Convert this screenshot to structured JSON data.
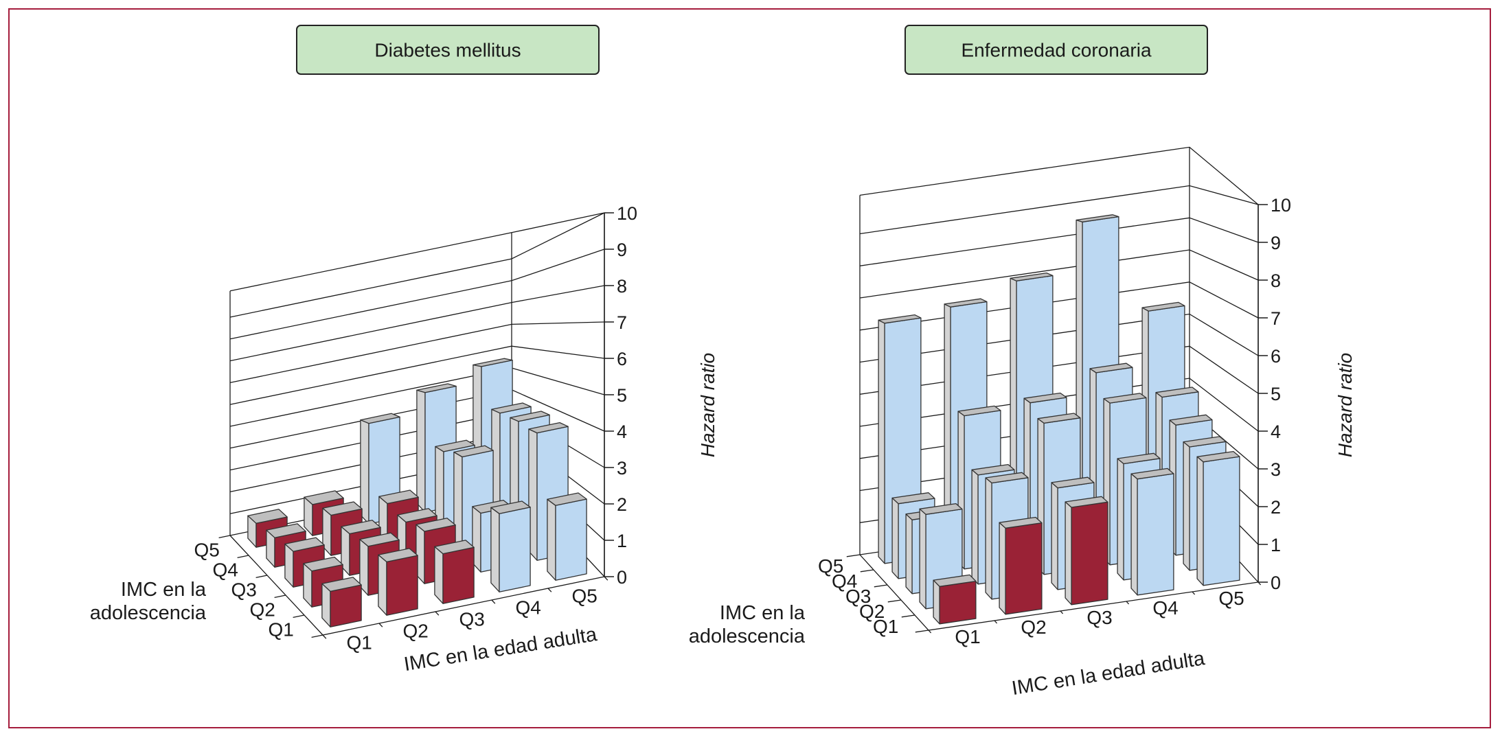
{
  "figure": {
    "colors": {
      "frame": "#a51c3c",
      "title_bg": "#c8e6c4",
      "bar_blue_front": "#bcd8f2",
      "bar_side": "#d3d3d3",
      "bar_red_front": "#9a2236",
      "grid": "#1a1a1a"
    }
  },
  "chart_data": [
    {
      "type": "bar3d",
      "title": "Diabetes mellitus",
      "xlabel": "IMC en la edad adulta",
      "ylabel": "IMC en la\nadolescencia",
      "zlabel": "Hazard ratio",
      "x_categories": [
        "Q1",
        "Q2",
        "Q3",
        "Q4",
        "Q5"
      ],
      "y_categories": [
        "Q1",
        "Q2",
        "Q3",
        "Q4",
        "Q5"
      ],
      "z_ticks": [
        "0",
        "1",
        "2",
        "3",
        "4",
        "5",
        "6",
        "7",
        "8",
        "9",
        "10"
      ],
      "zlim": [
        0,
        10
      ],
      "bars": [
        {
          "adult": "Q1",
          "adol": "Q5",
          "value": 1.0,
          "color": "red"
        },
        {
          "adult": "Q1",
          "adol": "Q4",
          "value": 1.1,
          "color": "red"
        },
        {
          "adult": "Q1",
          "adol": "Q3",
          "value": 1.2,
          "color": "red"
        },
        {
          "adult": "Q1",
          "adol": "Q2",
          "value": 1.1,
          "color": "red"
        },
        {
          "adult": "Q1",
          "adol": "Q1",
          "value": 1.0,
          "color": "red"
        },
        {
          "adult": "Q2",
          "adol": "Q5",
          "value": 1.3,
          "color": "red"
        },
        {
          "adult": "Q2",
          "adol": "Q4",
          "value": 1.5,
          "color": "red"
        },
        {
          "adult": "Q2",
          "adol": "Q3",
          "value": 1.4,
          "color": "red"
        },
        {
          "adult": "Q2",
          "adol": "Q2",
          "value": 1.5,
          "color": "red"
        },
        {
          "adult": "Q2",
          "adol": "Q1",
          "value": 1.5,
          "color": "red"
        },
        {
          "adult": "Q3",
          "adol": "Q5",
          "value": 4.2,
          "color": "blue"
        },
        {
          "adult": "Q3",
          "adol": "Q4",
          "value": 1.5,
          "color": "red"
        },
        {
          "adult": "Q3",
          "adol": "Q3",
          "value": 1.4,
          "color": "red"
        },
        {
          "adult": "Q3",
          "adol": "Q2",
          "value": 1.6,
          "color": "red"
        },
        {
          "adult": "Q3",
          "adol": "Q1",
          "value": 1.4,
          "color": "red"
        },
        {
          "adult": "Q4",
          "adol": "Q5",
          "value": 5.0,
          "color": "blue"
        },
        {
          "adult": "Q4",
          "adol": "Q4",
          "value": 3.0,
          "color": "blue"
        },
        {
          "adult": "Q4",
          "adol": "Q3",
          "value": 3.2,
          "color": "blue"
        },
        {
          "adult": "Q4",
          "adol": "Q2",
          "value": 1.8,
          "color": "blue"
        },
        {
          "adult": "Q4",
          "adol": "Q1",
          "value": 2.2,
          "color": "blue"
        },
        {
          "adult": "Q5",
          "adol": "Q5",
          "value": 5.6,
          "color": "blue"
        },
        {
          "adult": "Q5",
          "adol": "Q4",
          "value": 4.0,
          "color": "blue"
        },
        {
          "adult": "Q5",
          "adol": "Q3",
          "value": 4.0,
          "color": "blue"
        },
        {
          "adult": "Q5",
          "adol": "Q2",
          "value": 3.9,
          "color": "blue"
        },
        {
          "adult": "Q5",
          "adol": "Q1",
          "value": 2.1,
          "color": "blue"
        }
      ]
    },
    {
      "type": "bar3d",
      "title": "Enfermedad coronaria",
      "xlabel": "IMC en la edad adulta",
      "ylabel": "IMC en la\nadolescencia",
      "zlabel": "Hazard ratio",
      "x_categories": [
        "Q1",
        "Q2",
        "Q3",
        "Q4",
        "Q5"
      ],
      "y_categories": [
        "Q1",
        "Q2",
        "Q3",
        "Q4",
        "Q5"
      ],
      "z_ticks": [
        "0",
        "1",
        "2",
        "3",
        "4",
        "5",
        "6",
        "7",
        "8",
        "9",
        "10"
      ],
      "zlim": [
        0,
        10
      ],
      "bars": [
        {
          "adult": "Q1",
          "adol": "Q1",
          "value": 1.0,
          "color": "red"
        },
        {
          "adult": "Q1",
          "adol": "Q2",
          "value": 2.6,
          "color": "blue"
        },
        {
          "adult": "Q1",
          "adol": "Q3",
          "value": 2.1,
          "color": "blue"
        },
        {
          "adult": "Q1",
          "adol": "Q4",
          "value": 2.2,
          "color": "blue"
        },
        {
          "adult": "Q1",
          "adol": "Q5",
          "value": 7.3,
          "color": "blue"
        },
        {
          "adult": "Q2",
          "adol": "Q1",
          "value": 2.3,
          "color": "red"
        },
        {
          "adult": "Q2",
          "adol": "Q2",
          "value": 3.2,
          "color": "blue"
        },
        {
          "adult": "Q2",
          "adol": "Q3",
          "value": 3.1,
          "color": "blue"
        },
        {
          "adult": "Q2",
          "adol": "Q4",
          "value": 4.5,
          "color": "blue"
        },
        {
          "adult": "Q2",
          "adol": "Q5",
          "value": 7.5,
          "color": "blue"
        },
        {
          "adult": "Q3",
          "adol": "Q1",
          "value": 2.6,
          "color": "red"
        },
        {
          "adult": "Q3",
          "adol": "Q2",
          "value": 2.8,
          "color": "blue"
        },
        {
          "adult": "Q3",
          "adol": "Q3",
          "value": 4.3,
          "color": "blue"
        },
        {
          "adult": "Q3",
          "adol": "Q4",
          "value": 4.6,
          "color": "blue"
        },
        {
          "adult": "Q3",
          "adol": "Q5",
          "value": 8.0,
          "color": "blue"
        },
        {
          "adult": "Q4",
          "adol": "Q1",
          "value": 3.1,
          "color": "blue"
        },
        {
          "adult": "Q4",
          "adol": "Q2",
          "value": 3.2,
          "color": "blue"
        },
        {
          "adult": "Q4",
          "adol": "Q3",
          "value": 4.6,
          "color": "blue"
        },
        {
          "adult": "Q4",
          "adol": "Q4",
          "value": 5.2,
          "color": "blue"
        },
        {
          "adult": "Q4",
          "adol": "Q5",
          "value": 9.5,
          "color": "blue"
        },
        {
          "adult": "Q5",
          "adol": "Q1",
          "value": 3.3,
          "color": "blue"
        },
        {
          "adult": "Q5",
          "adol": "Q2",
          "value": 3.4,
          "color": "blue"
        },
        {
          "adult": "Q5",
          "adol": "Q3",
          "value": 3.7,
          "color": "blue"
        },
        {
          "adult": "Q5",
          "adol": "Q4",
          "value": 4.2,
          "color": "blue"
        },
        {
          "adult": "Q5",
          "adol": "Q5",
          "value": 6.5,
          "color": "blue"
        }
      ]
    }
  ]
}
